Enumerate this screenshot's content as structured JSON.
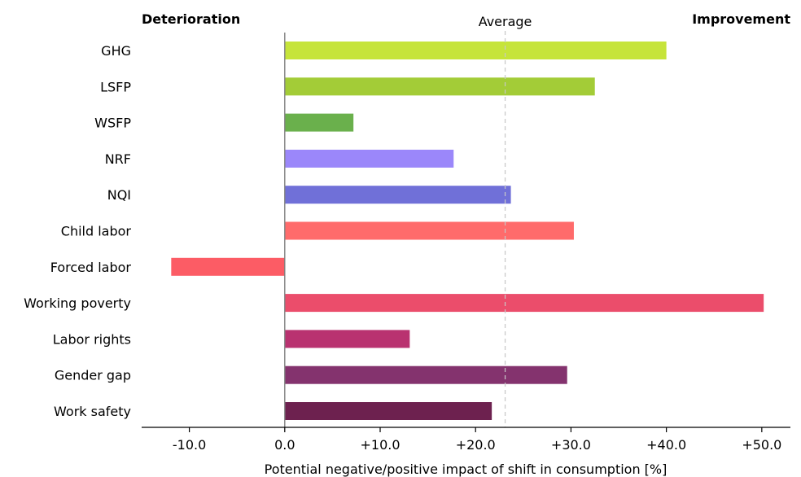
{
  "chart_data": {
    "type": "bar",
    "orientation": "horizontal",
    "categories": [
      "GHG",
      "LSFP",
      "WSFP",
      "NRF",
      "NQI",
      "Child labor",
      "Forced labor",
      "Working poverty",
      "Labor rights",
      "Gender gap",
      "Work safety"
    ],
    "values": [
      40.0,
      32.5,
      7.2,
      17.7,
      23.7,
      30.3,
      -11.9,
      50.2,
      13.1,
      29.6,
      21.7
    ],
    "colors": [
      "#c6e43a",
      "#a3cc37",
      "#6ab04c",
      "#9b87fa",
      "#7070d8",
      "#ff6b6b",
      "#fc5c65",
      "#eb4d6b",
      "#b93270",
      "#84336e",
      "#6d214f"
    ],
    "average": 23.1,
    "average_label": "Average",
    "left_label": "Deterioration",
    "right_label": "Improvement",
    "xlabel": "Potential negative/positive impact of shift in consumption [%]",
    "ylabel": "",
    "xlim": [
      -15.0,
      53.0
    ],
    "xticks": [
      -10,
      0,
      10,
      20,
      30,
      40,
      50
    ],
    "xtick_labels": [
      "-10.0",
      "0.0",
      "+10.0",
      "+20.0",
      "+30.0",
      "+40.0",
      "+50.0"
    ],
    "grid": false,
    "legend": "none"
  }
}
